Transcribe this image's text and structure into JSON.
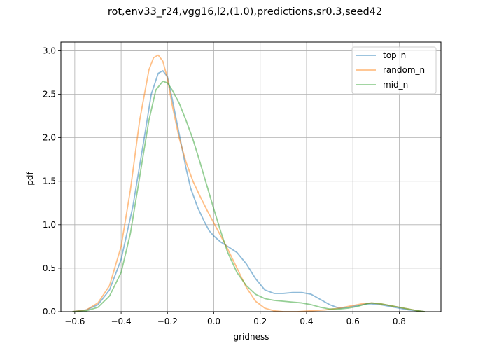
{
  "chart_data": {
    "type": "line",
    "title": "rot,env33_r24,vgg16,l2,(1.0),predictions,sr0.3,seed42",
    "xlabel": "gridness",
    "ylabel": "pdf",
    "xlim": [
      -0.66,
      0.98
    ],
    "ylim": [
      0,
      3.1
    ],
    "x_ticks": [
      -0.6,
      -0.4,
      -0.2,
      0.0,
      0.2,
      0.4,
      0.6,
      0.8
    ],
    "x_tick_labels": [
      "−0.6",
      "−0.4",
      "−0.2",
      "0.0",
      "0.2",
      "0.4",
      "0.6",
      "0.8"
    ],
    "y_ticks": [
      0.0,
      0.5,
      1.0,
      1.5,
      2.0,
      2.5,
      3.0
    ],
    "y_tick_labels": [
      "0.0",
      "0.5",
      "1.0",
      "1.5",
      "2.0",
      "2.5",
      "3.0"
    ],
    "grid": true,
    "legend_position": "top-right",
    "series": [
      {
        "name": "top_n",
        "color": "#1f77b4",
        "x": [
          -0.61,
          -0.55,
          -0.5,
          -0.45,
          -0.4,
          -0.35,
          -0.3,
          -0.27,
          -0.24,
          -0.22,
          -0.2,
          -0.18,
          -0.15,
          -0.12,
          -0.1,
          -0.07,
          -0.04,
          -0.02,
          0.0,
          0.03,
          0.06,
          0.1,
          0.14,
          0.18,
          0.22,
          0.26,
          0.3,
          0.34,
          0.38,
          0.42,
          0.46,
          0.5,
          0.54,
          0.58,
          0.62,
          0.66,
          0.68,
          0.72,
          0.76,
          0.8,
          0.84,
          0.88,
          0.91
        ],
        "y": [
          0.0,
          0.02,
          0.08,
          0.25,
          0.6,
          1.2,
          2.0,
          2.5,
          2.74,
          2.77,
          2.7,
          2.45,
          2.05,
          1.65,
          1.42,
          1.2,
          1.03,
          0.93,
          0.87,
          0.8,
          0.75,
          0.68,
          0.55,
          0.38,
          0.25,
          0.21,
          0.21,
          0.22,
          0.22,
          0.2,
          0.14,
          0.08,
          0.04,
          0.05,
          0.07,
          0.09,
          0.09,
          0.08,
          0.06,
          0.04,
          0.02,
          0.01,
          0.0
        ]
      },
      {
        "name": "random_n",
        "color": "#ff7f0e",
        "x": [
          -0.61,
          -0.55,
          -0.5,
          -0.45,
          -0.4,
          -0.36,
          -0.32,
          -0.28,
          -0.26,
          -0.24,
          -0.22,
          -0.2,
          -0.18,
          -0.15,
          -0.12,
          -0.09,
          -0.06,
          -0.03,
          0.0,
          0.03,
          0.06,
          0.1,
          0.14,
          0.18,
          0.22,
          0.26,
          0.3,
          0.36,
          0.42,
          0.48,
          0.54,
          0.6,
          0.64,
          0.68,
          0.72,
          0.76,
          0.8,
          0.84,
          0.88,
          0.91
        ],
        "y": [
          0.0,
          0.02,
          0.1,
          0.3,
          0.75,
          1.4,
          2.2,
          2.78,
          2.92,
          2.95,
          2.88,
          2.68,
          2.38,
          2.0,
          1.72,
          1.5,
          1.33,
          1.17,
          1.02,
          0.87,
          0.72,
          0.5,
          0.28,
          0.12,
          0.04,
          0.01,
          0.0,
          0.0,
          0.01,
          0.02,
          0.04,
          0.07,
          0.09,
          0.1,
          0.09,
          0.07,
          0.05,
          0.03,
          0.01,
          0.0
        ]
      },
      {
        "name": "mid_n",
        "color": "#2ca02c",
        "x": [
          -0.61,
          -0.55,
          -0.5,
          -0.45,
          -0.4,
          -0.36,
          -0.32,
          -0.28,
          -0.25,
          -0.22,
          -0.2,
          -0.18,
          -0.15,
          -0.12,
          -0.09,
          -0.06,
          -0.03,
          0.0,
          0.03,
          0.06,
          0.1,
          0.14,
          0.18,
          0.22,
          0.26,
          0.3,
          0.34,
          0.38,
          0.42,
          0.46,
          0.5,
          0.54,
          0.58,
          0.62,
          0.66,
          0.68,
          0.72,
          0.76,
          0.8,
          0.84,
          0.88,
          0.91
        ],
        "y": [
          0.0,
          0.01,
          0.05,
          0.18,
          0.45,
          0.9,
          1.55,
          2.2,
          2.55,
          2.65,
          2.63,
          2.55,
          2.4,
          2.2,
          1.98,
          1.72,
          1.45,
          1.18,
          0.92,
          0.68,
          0.45,
          0.3,
          0.2,
          0.15,
          0.13,
          0.12,
          0.11,
          0.1,
          0.08,
          0.05,
          0.03,
          0.03,
          0.04,
          0.06,
          0.09,
          0.1,
          0.09,
          0.07,
          0.05,
          0.03,
          0.01,
          0.0
        ]
      }
    ]
  }
}
